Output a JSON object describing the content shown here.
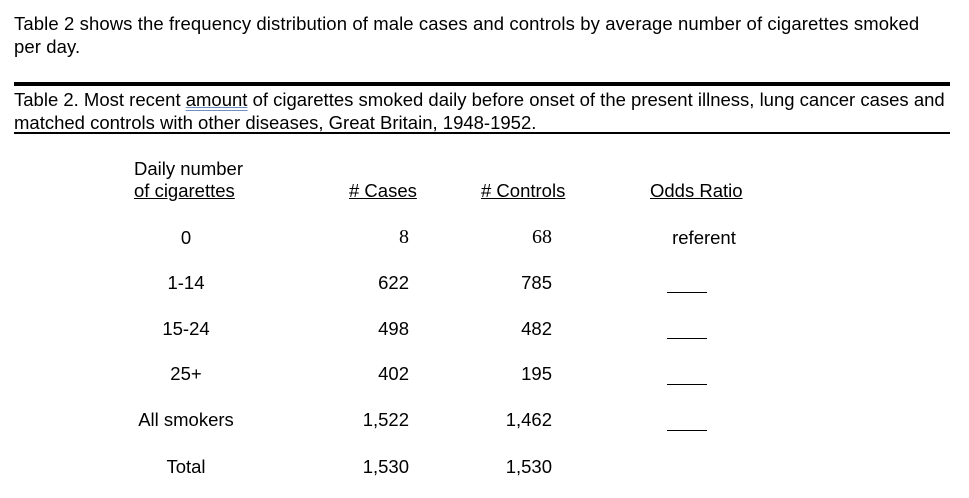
{
  "intro_text": "Table 2 shows the frequency distribution of male cases and controls by average number of cigarettes smoked per day.",
  "caption": {
    "prefix": "Table 2.  Most recent ",
    "underlined_word": "amount",
    "suffix": " of cigarettes smoked daily before onset of the present illness, lung cancer cases and matched controls with other diseases, Great Britain, 1948-1952."
  },
  "table": {
    "headers": {
      "daily_number_line1": "Daily number",
      "daily_number_line2": "of cigarettes",
      "cases": "# Cases",
      "controls": "# Controls",
      "odds_ratio": "Odds Ratio"
    },
    "rows": [
      {
        "label": "0",
        "cases": "8",
        "controls": "68",
        "odds_ratio": "referent"
      },
      {
        "label": "1-14",
        "cases": "622",
        "controls": "785",
        "odds_ratio": ""
      },
      {
        "label": "15-24",
        "cases": "498",
        "controls": "482",
        "odds_ratio": ""
      },
      {
        "label": "25+",
        "cases": "402",
        "controls": "195",
        "odds_ratio": ""
      },
      {
        "label": "All smokers",
        "cases": "1,522",
        "controls": "1,462",
        "odds_ratio": ""
      },
      {
        "label": "Total",
        "cases": "1,530",
        "controls": "1,530"
      }
    ]
  }
}
